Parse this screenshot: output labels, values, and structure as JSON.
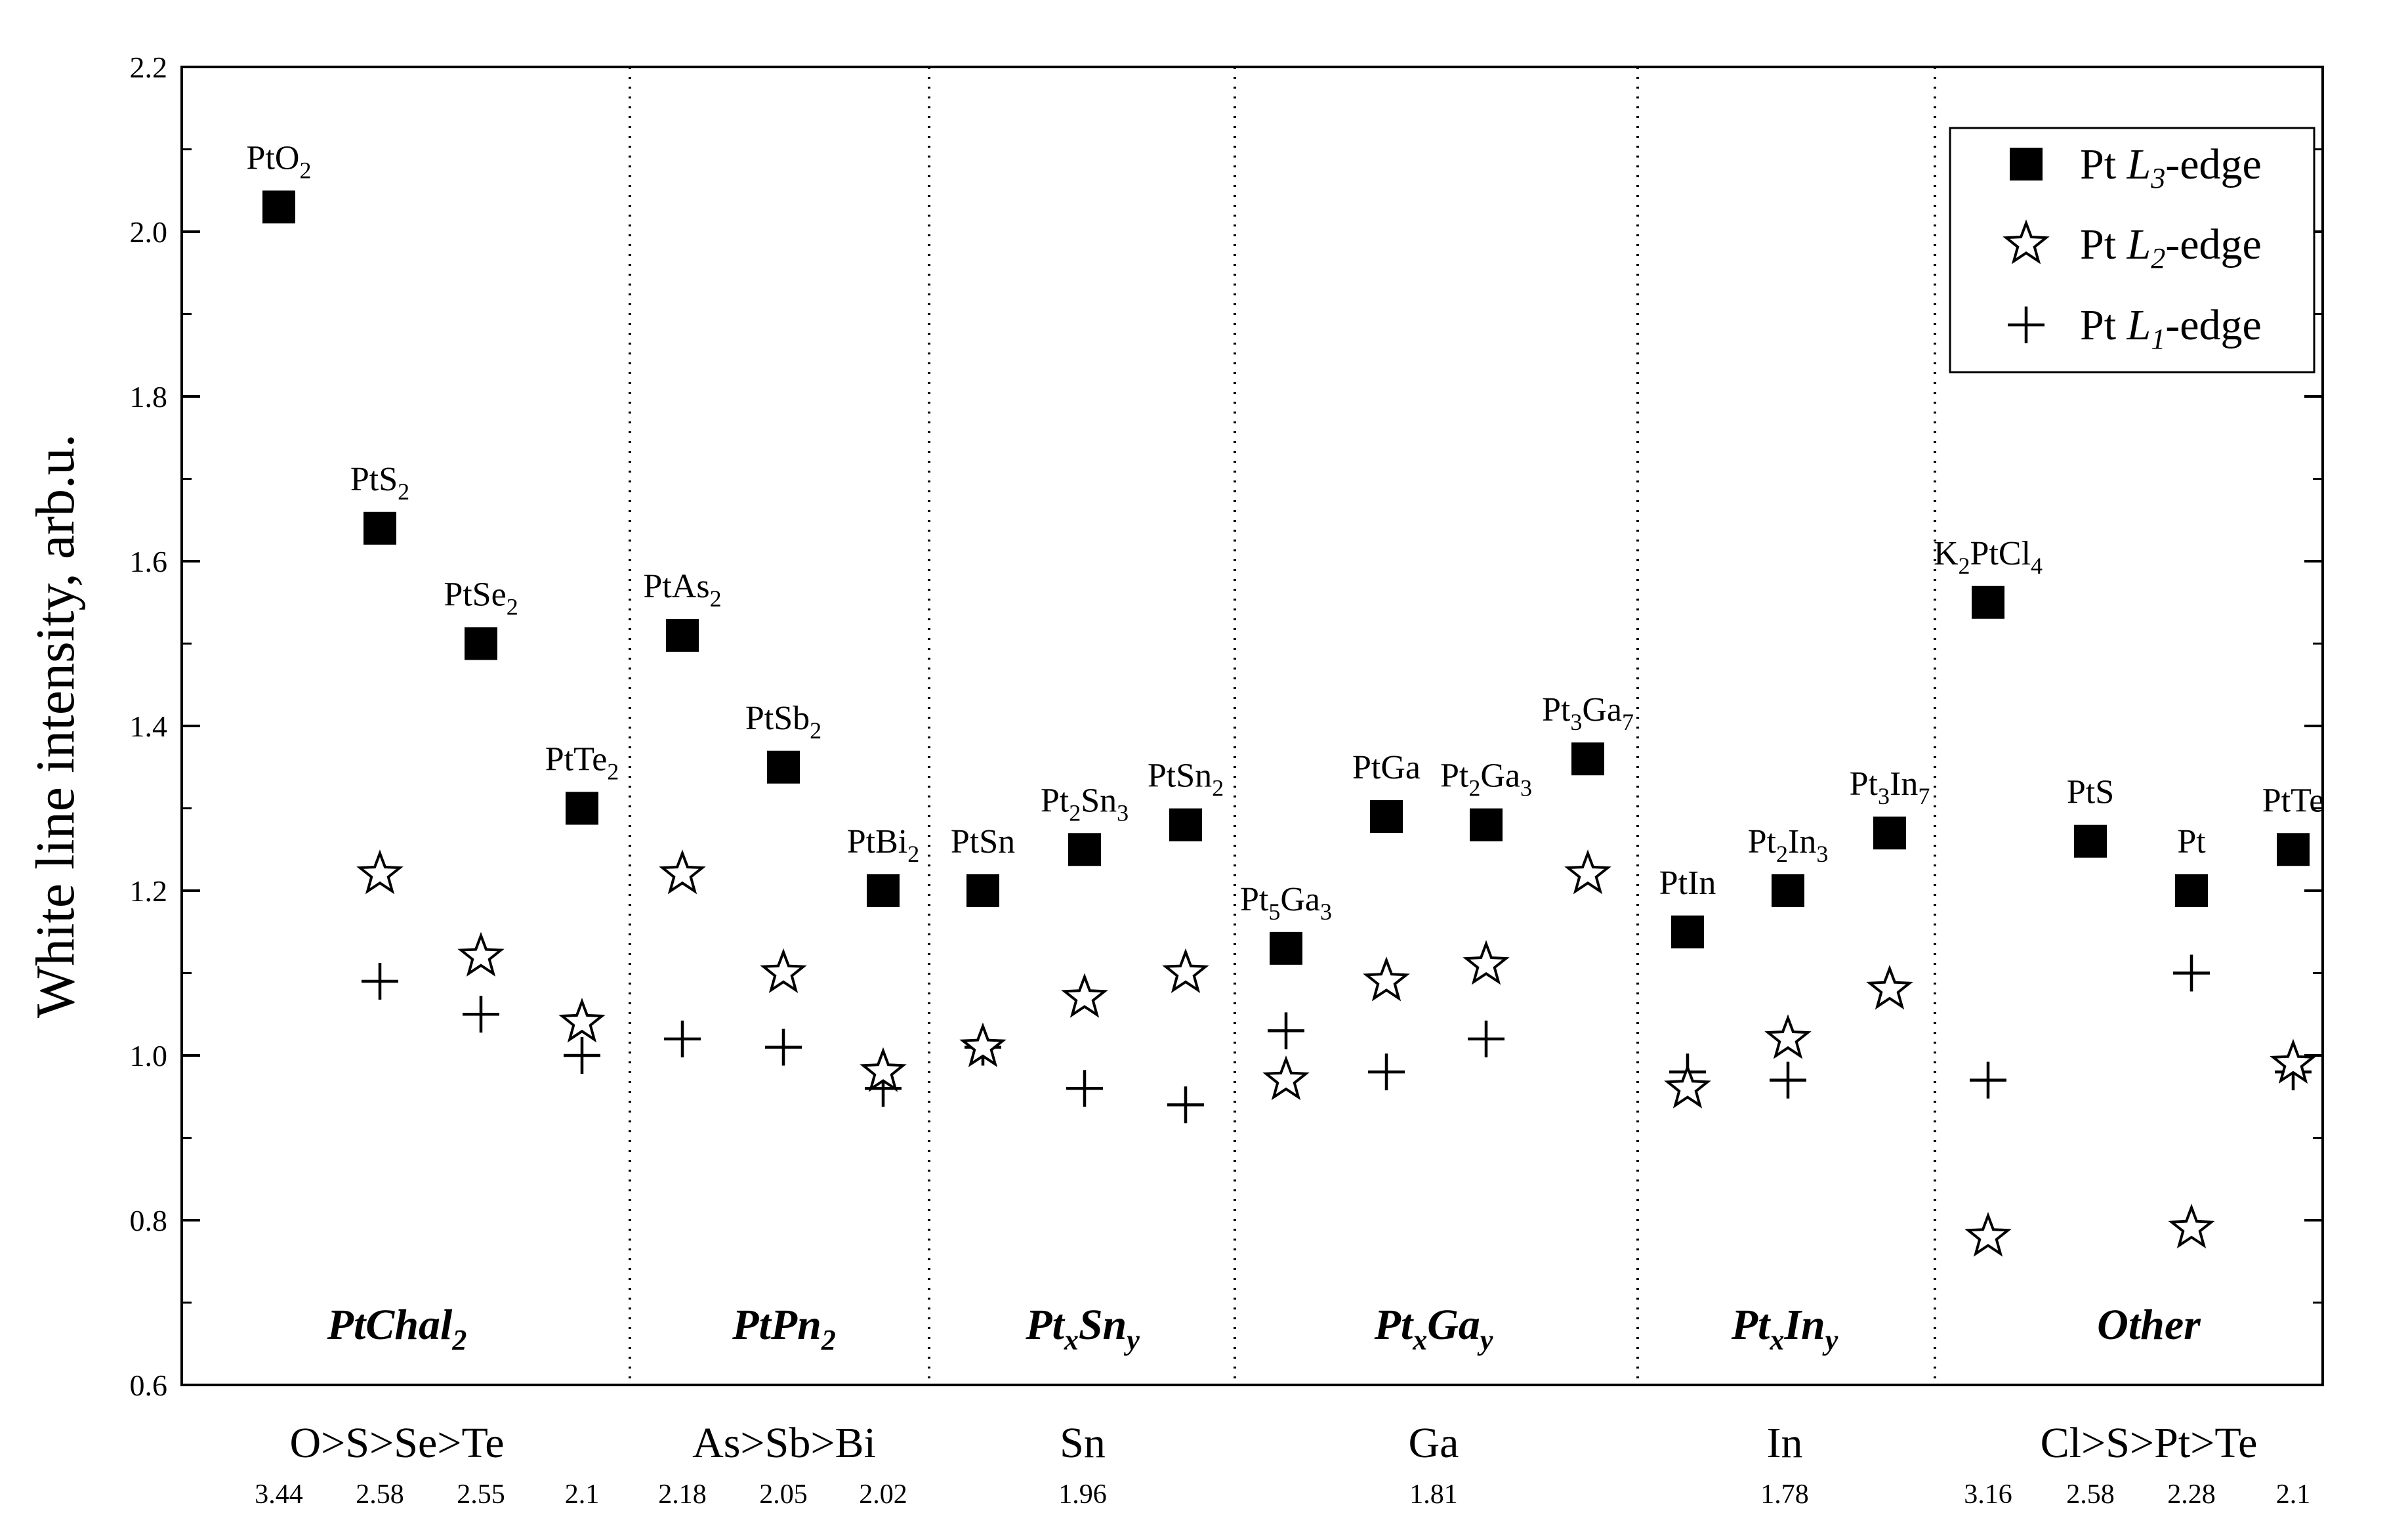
{
  "chart_data": {
    "type": "scatter",
    "ylabel": "White line intensity, arb.u.",
    "xlabel": "",
    "ylim": [
      0.6,
      2.2
    ],
    "yticks": [
      "0.6",
      "0.8",
      "1.0",
      "1.2",
      "1.4",
      "1.6",
      "1.8",
      "2.0",
      "2.2"
    ],
    "legend_position": "top-right",
    "series": [
      {
        "name_prefix": "Pt ",
        "name_sub": "3",
        "name_suffix": "-edge",
        "marker": "square"
      },
      {
        "name_prefix": "Pt ",
        "name_sub": "2",
        "name_suffix": "-edge",
        "marker": "star"
      },
      {
        "name_prefix": "Pt ",
        "name_sub": "1",
        "name_suffix": "-edge",
        "marker": "plus"
      }
    ],
    "groups": [
      {
        "label_main": "PtChal",
        "label_sub": "2",
        "label_sub2": "",
        "label_sub2_text": "",
        "bottom": "O>S>Se>Te",
        "electroneg": [
          "3.44",
          "2.58",
          "2.55",
          "2.1"
        ]
      },
      {
        "label_main": "PtPn",
        "label_sub": "2",
        "label_sub2": "",
        "label_sub2_text": "",
        "bottom": "As>Sb>Bi",
        "electroneg": [
          "2.18",
          "2.05",
          "2.02"
        ]
      },
      {
        "label_main": "Pt",
        "label_sub": "x",
        "label_sub2": "y",
        "label_sub2_text": "Sn",
        "bottom": "Sn",
        "electroneg": [
          "1.96"
        ]
      },
      {
        "label_main": "Pt",
        "label_sub": "x",
        "label_sub2": "y",
        "label_sub2_text": "Ga",
        "bottom": "Ga",
        "electroneg": [
          "1.81"
        ]
      },
      {
        "label_main": "Pt",
        "label_sub": "x",
        "label_sub2": "y",
        "label_sub2_text": "In",
        "bottom": "In",
        "electroneg": [
          "1.78"
        ]
      },
      {
        "label_main": "Other",
        "label_sub": "",
        "label_sub2": "",
        "label_sub2_text": "",
        "bottom": "Cl>S>Pt>Te",
        "electroneg": [
          "3.16",
          "2.58",
          "2.28",
          "2.1"
        ]
      }
    ],
    "points": [
      {
        "label": [
          [
            "PtO",
            ""
          ],
          [
            "2",
            "sub"
          ]
        ],
        "L3": 2.03,
        "L2": null,
        "L1": null
      },
      {
        "label": [
          [
            "PtS",
            ""
          ],
          [
            "2",
            "sub"
          ]
        ],
        "L3": 1.64,
        "L2": 1.22,
        "L1": 1.09
      },
      {
        "label": [
          [
            "PtSe",
            ""
          ],
          [
            "2",
            "sub"
          ]
        ],
        "L3": 1.5,
        "L2": 1.12,
        "L1": 1.05
      },
      {
        "label": [
          [
            "PtTe",
            ""
          ],
          [
            "2",
            "sub"
          ]
        ],
        "L3": 1.3,
        "L2": 1.04,
        "L1": 1.0
      },
      {
        "label": [
          [
            "PtAs",
            ""
          ],
          [
            "2",
            "sub"
          ]
        ],
        "L3": 1.51,
        "L2": 1.22,
        "L1": 1.02
      },
      {
        "label": [
          [
            "PtSb",
            ""
          ],
          [
            "2",
            "sub"
          ]
        ],
        "L3": 1.35,
        "L2": 1.1,
        "L1": 1.01
      },
      {
        "label": [
          [
            "PtBi",
            ""
          ],
          [
            "2",
            "sub"
          ]
        ],
        "L3": 1.2,
        "L2": 0.98,
        "L1": 0.96
      },
      {
        "label": [
          [
            "PtSn",
            ""
          ]
        ],
        "L3": 1.2,
        "L2": 1.01,
        "L1": 1.01
      },
      {
        "label": [
          [
            "Pt",
            ""
          ],
          [
            "2",
            "sub"
          ],
          [
            "Sn",
            ""
          ],
          [
            "3",
            "sub"
          ]
        ],
        "L3": 1.25,
        "L2": 1.07,
        "L1": 0.96
      },
      {
        "label": [
          [
            "PtSn",
            ""
          ],
          [
            "2",
            "sub"
          ]
        ],
        "L3": 1.28,
        "L2": 1.1,
        "L1": 0.94
      },
      {
        "label": [
          [
            "Pt",
            ""
          ],
          [
            "5",
            "sub"
          ],
          [
            "Ga",
            ""
          ],
          [
            "3",
            "sub"
          ]
        ],
        "L3": 1.13,
        "L2": 0.97,
        "L1": 1.03
      },
      {
        "label": [
          [
            "PtGa",
            ""
          ]
        ],
        "L3": 1.29,
        "L2": 1.09,
        "L1": 0.98
      },
      {
        "label": [
          [
            "Pt",
            ""
          ],
          [
            "2",
            "sub"
          ],
          [
            "Ga",
            ""
          ],
          [
            "3",
            "sub"
          ]
        ],
        "L3": 1.28,
        "L2": 1.11,
        "L1": 1.02
      },
      {
        "label": [
          [
            "Pt",
            ""
          ],
          [
            "3",
            "sub"
          ],
          [
            "Ga",
            ""
          ],
          [
            "7",
            "sub"
          ]
        ],
        "L3": 1.36,
        "L2": 1.22,
        "L1": null
      },
      {
        "label": [
          [
            "PtIn",
            ""
          ]
        ],
        "L3": 1.15,
        "L2": 0.96,
        "L1": 0.98
      },
      {
        "label": [
          [
            "Pt",
            ""
          ],
          [
            "2",
            "sub"
          ],
          [
            "In",
            ""
          ],
          [
            "3",
            "sub"
          ]
        ],
        "L3": 1.2,
        "L2": 1.02,
        "L1": 0.97
      },
      {
        "label": [
          [
            "Pt",
            ""
          ],
          [
            "3",
            "sub"
          ],
          [
            "In",
            ""
          ],
          [
            "7",
            "sub"
          ]
        ],
        "L3": 1.27,
        "L2": 1.08,
        "L1": null
      },
      {
        "label": [
          [
            "K",
            ""
          ],
          [
            "2",
            "sub"
          ],
          [
            "PtCl",
            ""
          ],
          [
            "4",
            "sub"
          ]
        ],
        "L3": 1.55,
        "L2": 0.78,
        "L1": 0.97
      },
      {
        "label": [
          [
            "PtS",
            ""
          ]
        ],
        "L3": 1.26,
        "L2": null,
        "L1": null
      },
      {
        "label": [
          [
            "Pt",
            ""
          ]
        ],
        "L3": 1.2,
        "L2": 0.79,
        "L1": 1.1
      },
      {
        "label": [
          [
            "PtTe",
            ""
          ]
        ],
        "L3": 1.25,
        "L2": 0.99,
        "L1": 0.98
      }
    ]
  }
}
